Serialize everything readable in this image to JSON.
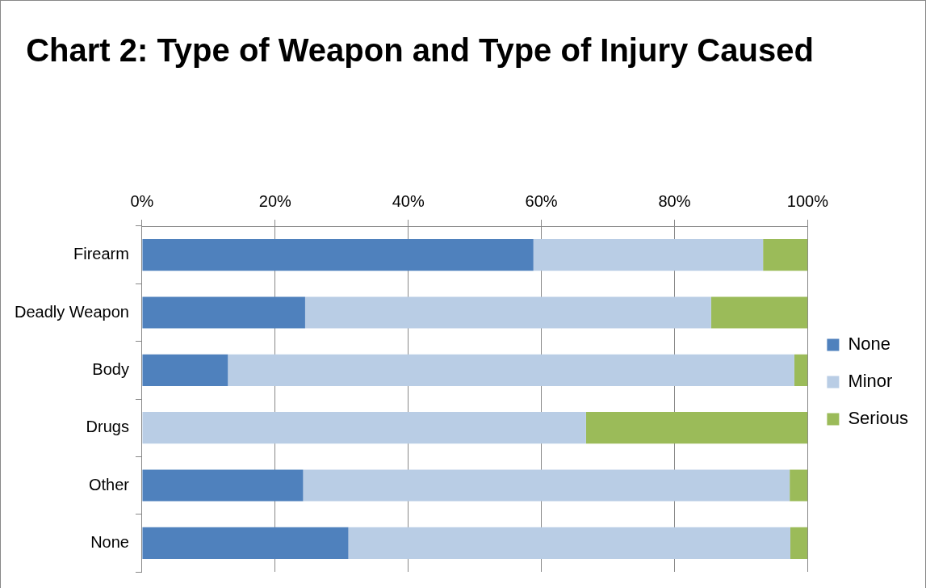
{
  "chart_data": {
    "type": "bar",
    "orientation": "horizontal",
    "stacked": true,
    "title": "Chart 2: Type of Weapon and Type of Injury Caused",
    "categories": [
      "Firearm",
      "Deadly Weapon",
      "Body",
      "Drugs",
      "Other",
      "None"
    ],
    "series": [
      {
        "name": "None",
        "color": "#4f81bd",
        "values": [
          58.8,
          24.5,
          12.9,
          0,
          24.2,
          31.0
        ]
      },
      {
        "name": "Minor",
        "color": "#b9cde5",
        "values": [
          34.5,
          61.0,
          85.1,
          66.7,
          73.1,
          66.4
        ]
      },
      {
        "name": "Serious",
        "color": "#9bbb59",
        "values": [
          6.7,
          14.5,
          2.0,
          33.3,
          2.7,
          2.6
        ]
      }
    ],
    "xlim": [
      0,
      100
    ],
    "xticks": [
      {
        "value": 0,
        "label": "0%"
      },
      {
        "value": 20,
        "label": "20%"
      },
      {
        "value": 40,
        "label": "40%"
      },
      {
        "value": 60,
        "label": "60%"
      },
      {
        "value": 80,
        "label": "80%"
      },
      {
        "value": 100,
        "label": "100%"
      }
    ],
    "grid": "x",
    "legend": "right"
  }
}
